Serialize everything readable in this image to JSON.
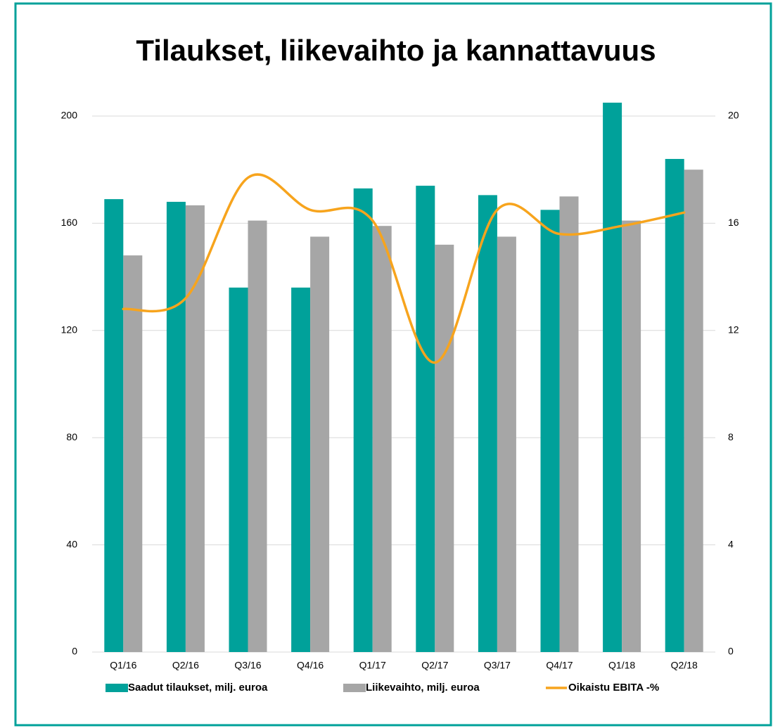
{
  "chart_data": {
    "type": "bar_line",
    "title": "Tilaukset, liikevaihto ja kannattavuus",
    "categories": [
      "Q1/16",
      "Q2/16",
      "Q3/16",
      "Q4/16",
      "Q1/17",
      "Q2/17",
      "Q3/17",
      "Q4/17",
      "Q1/18",
      "Q2/18"
    ],
    "series": [
      {
        "name": "Saadut tilaukset, milj. euroa",
        "color": "#00a19a",
        "type": "bar",
        "values": [
          169,
          168,
          136,
          136,
          173,
          174,
          170.5,
          165,
          205,
          184
        ]
      },
      {
        "name": "Liikevaihto, milj. euroa",
        "color": "#a6a6a6",
        "type": "bar",
        "values": [
          148,
          166.7,
          161,
          155,
          159,
          152,
          155,
          170,
          161,
          180
        ]
      },
      {
        "name": "Oikaistu EBITA -%",
        "color": "#f7a41d",
        "type": "line",
        "axis": "y2",
        "values": [
          12.8,
          13.2,
          17.7,
          16.5,
          16.1,
          10.8,
          16.5,
          15.6,
          15.9,
          16.4
        ]
      }
    ],
    "ylim": [
      0,
      200
    ],
    "yticks": [
      0,
      40,
      80,
      120,
      160,
      200
    ],
    "y2lim": [
      0,
      20
    ],
    "y2ticks": [
      0,
      4,
      8,
      12,
      16,
      20
    ],
    "grid": true,
    "legend": "bottom"
  }
}
